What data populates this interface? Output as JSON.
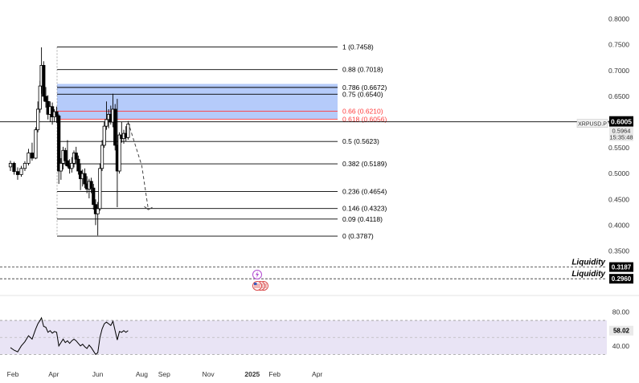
{
  "chart_data": {
    "type": "candlestick",
    "symbol": "XRPUSD.P",
    "price_axis": {
      "ticks": [
        "0.8000",
        "0.7500",
        "0.7000",
        "0.6500",
        "0.6000",
        "0.5500",
        "0.5000",
        "0.4500",
        "0.4000",
        "0.3500"
      ],
      "tick_values": [
        0.8,
        0.75,
        0.7,
        0.65,
        0.6,
        0.55,
        0.5,
        0.45,
        0.4,
        0.35
      ],
      "ylim": [
        0.343,
        0.815
      ]
    },
    "time_axis": {
      "ticks": [
        "Feb",
        "Apr",
        "Jun",
        "Aug",
        "Sep",
        "Nov",
        "2025",
        "Feb",
        "Apr"
      ],
      "tick_days": [
        0,
        60,
        121,
        182,
        213,
        274,
        335,
        366,
        425
      ],
      "xlim": [
        -10,
        457
      ]
    },
    "last_price": {
      "value": "0.6005",
      "secondary": "0.5964",
      "countdown": "15:35:48"
    },
    "fibonacci": {
      "levels": [
        {
          "label": "1 (0.7458)",
          "value": 0.7458,
          "highlight": false
        },
        {
          "label": "0.88 (0.7018)",
          "value": 0.7018,
          "highlight": false
        },
        {
          "label": "0.786 (0.6672)",
          "value": 0.6672,
          "highlight": false
        },
        {
          "label": "0.75 (0.6540)",
          "value": 0.654,
          "highlight": false
        },
        {
          "label": "0.66 (0.6210)",
          "value": 0.621,
          "highlight": true
        },
        {
          "label": "0.618 (0.6056)",
          "value": 0.6056,
          "highlight": true
        },
        {
          "label": "0.5 (0.5623)",
          "value": 0.5623,
          "highlight": false
        },
        {
          "label": "0.382 (0.5189)",
          "value": 0.5189,
          "highlight": false
        },
        {
          "label": "0.236 (0.4654)",
          "value": 0.4654,
          "highlight": false
        },
        {
          "label": "0.146 (0.4323)",
          "value": 0.4323,
          "highlight": false
        },
        {
          "label": "0.09 (0.4118)",
          "value": 0.4118,
          "highlight": false
        },
        {
          "label": "0 (0.3787)",
          "value": 0.3787,
          "highlight": false
        }
      ],
      "zone": {
        "from": 0.6056,
        "to": 0.674,
        "color": "#5b8cf5"
      }
    },
    "liquidity": [
      {
        "label": "Liquidity",
        "value": "0.3187",
        "level": 0.3187
      },
      {
        "label": "Liquidity",
        "value": "0.2960",
        "level": 0.296
      }
    ],
    "candles": [
      {
        "d": 0,
        "o": 0.513,
        "h": 0.525,
        "l": 0.505,
        "c": 0.52
      },
      {
        "d": 5,
        "o": 0.52,
        "h": 0.523,
        "l": 0.498,
        "c": 0.504
      },
      {
        "d": 10,
        "o": 0.504,
        "h": 0.512,
        "l": 0.488,
        "c": 0.498
      },
      {
        "d": 15,
        "o": 0.498,
        "h": 0.515,
        "l": 0.494,
        "c": 0.51
      },
      {
        "d": 20,
        "o": 0.51,
        "h": 0.524,
        "l": 0.505,
        "c": 0.52
      },
      {
        "d": 25,
        "o": 0.52,
        "h": 0.548,
        "l": 0.516,
        "c": 0.54
      },
      {
        "d": 30,
        "o": 0.54,
        "h": 0.56,
        "l": 0.525,
        "c": 0.53
      },
      {
        "d": 35,
        "o": 0.53,
        "h": 0.59,
        "l": 0.528,
        "c": 0.585
      },
      {
        "d": 38,
        "o": 0.585,
        "h": 0.64,
        "l": 0.58,
        "c": 0.625
      },
      {
        "d": 41,
        "o": 0.625,
        "h": 0.68,
        "l": 0.618,
        "c": 0.67
      },
      {
        "d": 43,
        "o": 0.67,
        "h": 0.745,
        "l": 0.655,
        "c": 0.71
      },
      {
        "d": 46,
        "o": 0.71,
        "h": 0.718,
        "l": 0.64,
        "c": 0.65
      },
      {
        "d": 49,
        "o": 0.65,
        "h": 0.668,
        "l": 0.628,
        "c": 0.64
      },
      {
        "d": 52,
        "o": 0.64,
        "h": 0.652,
        "l": 0.605,
        "c": 0.615
      },
      {
        "d": 55,
        "o": 0.615,
        "h": 0.64,
        "l": 0.6,
        "c": 0.63
      },
      {
        "d": 58,
        "o": 0.63,
        "h": 0.638,
        "l": 0.595,
        "c": 0.61
      },
      {
        "d": 61,
        "o": 0.61,
        "h": 0.625,
        "l": 0.6,
        "c": 0.62
      },
      {
        "d": 64,
        "o": 0.62,
        "h": 0.63,
        "l": 0.598,
        "c": 0.612
      },
      {
        "d": 67,
        "o": 0.612,
        "h": 0.615,
        "l": 0.48,
        "c": 0.505
      },
      {
        "d": 70,
        "o": 0.505,
        "h": 0.53,
        "l": 0.488,
        "c": 0.52
      },
      {
        "d": 73,
        "o": 0.52,
        "h": 0.552,
        "l": 0.508,
        "c": 0.545
      },
      {
        "d": 76,
        "o": 0.545,
        "h": 0.55,
        "l": 0.515,
        "c": 0.525
      },
      {
        "d": 79,
        "o": 0.525,
        "h": 0.565,
        "l": 0.512,
        "c": 0.515
      },
      {
        "d": 82,
        "o": 0.515,
        "h": 0.528,
        "l": 0.5,
        "c": 0.51
      },
      {
        "d": 85,
        "o": 0.51,
        "h": 0.532,
        "l": 0.502,
        "c": 0.52
      },
      {
        "d": 88,
        "o": 0.52,
        "h": 0.545,
        "l": 0.512,
        "c": 0.54
      },
      {
        "d": 91,
        "o": 0.54,
        "h": 0.552,
        "l": 0.52,
        "c": 0.528
      },
      {
        "d": 94,
        "o": 0.528,
        "h": 0.535,
        "l": 0.498,
        "c": 0.505
      },
      {
        "d": 97,
        "o": 0.505,
        "h": 0.52,
        "l": 0.468,
        "c": 0.49
      },
      {
        "d": 100,
        "o": 0.49,
        "h": 0.508,
        "l": 0.475,
        "c": 0.5
      },
      {
        "d": 103,
        "o": 0.5,
        "h": 0.51,
        "l": 0.472,
        "c": 0.48
      },
      {
        "d": 106,
        "o": 0.48,
        "h": 0.495,
        "l": 0.462,
        "c": 0.47
      },
      {
        "d": 109,
        "o": 0.47,
        "h": 0.49,
        "l": 0.452,
        "c": 0.485
      },
      {
        "d": 112,
        "o": 0.485,
        "h": 0.492,
        "l": 0.462,
        "c": 0.472
      },
      {
        "d": 115,
        "o": 0.472,
        "h": 0.48,
        "l": 0.43,
        "c": 0.44
      },
      {
        "d": 118,
        "o": 0.44,
        "h": 0.45,
        "l": 0.4,
        "c": 0.422
      },
      {
        "d": 121,
        "o": 0.422,
        "h": 0.445,
        "l": 0.38,
        "c": 0.432
      },
      {
        "d": 124,
        "o": 0.432,
        "h": 0.52,
        "l": 0.428,
        "c": 0.51
      },
      {
        "d": 127,
        "o": 0.51,
        "h": 0.565,
        "l": 0.505,
        "c": 0.555
      },
      {
        "d": 130,
        "o": 0.555,
        "h": 0.6,
        "l": 0.55,
        "c": 0.592
      },
      {
        "d": 133,
        "o": 0.592,
        "h": 0.64,
        "l": 0.585,
        "c": 0.605
      },
      {
        "d": 136,
        "o": 0.605,
        "h": 0.625,
        "l": 0.588,
        "c": 0.615
      },
      {
        "d": 139,
        "o": 0.615,
        "h": 0.632,
        "l": 0.595,
        "c": 0.6
      },
      {
        "d": 142,
        "o": 0.6,
        "h": 0.655,
        "l": 0.59,
        "c": 0.625
      },
      {
        "d": 145,
        "o": 0.625,
        "h": 0.635,
        "l": 0.545,
        "c": 0.555
      },
      {
        "d": 148,
        "o": 0.555,
        "h": 0.645,
        "l": 0.435,
        "c": 0.505
      },
      {
        "d": 151,
        "o": 0.505,
        "h": 0.58,
        "l": 0.5,
        "c": 0.575
      },
      {
        "d": 154,
        "o": 0.575,
        "h": 0.6,
        "l": 0.56,
        "c": 0.568
      },
      {
        "d": 157,
        "o": 0.568,
        "h": 0.585,
        "l": 0.558,
        "c": 0.578
      },
      {
        "d": 160,
        "o": 0.578,
        "h": 0.592,
        "l": 0.562,
        "c": 0.57
      },
      {
        "d": 163,
        "o": 0.57,
        "h": 0.602,
        "l": 0.566,
        "c": 0.596
      }
    ],
    "projection": [
      {
        "d": 163,
        "v": 0.6
      },
      {
        "d": 182,
        "v": 0.515
      },
      {
        "d": 191,
        "v": 0.43
      }
    ],
    "rsi": {
      "ticks": [
        "80.00",
        "40.00"
      ],
      "tick_values": [
        80,
        40
      ],
      "band": [
        30,
        70
      ],
      "ylim": [
        20,
        88
      ],
      "current": "58.02",
      "values": [
        {
          "d": 0,
          "v": 38
        },
        {
          "d": 5,
          "v": 35
        },
        {
          "d": 10,
          "v": 33
        },
        {
          "d": 15,
          "v": 40
        },
        {
          "d": 20,
          "v": 45
        },
        {
          "d": 25,
          "v": 52
        },
        {
          "d": 30,
          "v": 48
        },
        {
          "d": 35,
          "v": 60
        },
        {
          "d": 38,
          "v": 66
        },
        {
          "d": 41,
          "v": 70
        },
        {
          "d": 43,
          "v": 73
        },
        {
          "d": 46,
          "v": 63
        },
        {
          "d": 49,
          "v": 62
        },
        {
          "d": 52,
          "v": 56
        },
        {
          "d": 55,
          "v": 58
        },
        {
          "d": 58,
          "v": 55
        },
        {
          "d": 61,
          "v": 57
        },
        {
          "d": 64,
          "v": 56
        },
        {
          "d": 67,
          "v": 40
        },
        {
          "d": 70,
          "v": 44
        },
        {
          "d": 73,
          "v": 48
        },
        {
          "d": 76,
          "v": 44
        },
        {
          "d": 79,
          "v": 46
        },
        {
          "d": 82,
          "v": 43
        },
        {
          "d": 85,
          "v": 46
        },
        {
          "d": 88,
          "v": 48
        },
        {
          "d": 91,
          "v": 46
        },
        {
          "d": 94,
          "v": 43
        },
        {
          "d": 97,
          "v": 40
        },
        {
          "d": 100,
          "v": 42
        },
        {
          "d": 103,
          "v": 39
        },
        {
          "d": 106,
          "v": 37
        },
        {
          "d": 109,
          "v": 41
        },
        {
          "d": 112,
          "v": 38
        },
        {
          "d": 115,
          "v": 34
        },
        {
          "d": 118,
          "v": 30
        },
        {
          "d": 121,
          "v": 32
        },
        {
          "d": 124,
          "v": 50
        },
        {
          "d": 127,
          "v": 60
        },
        {
          "d": 130,
          "v": 66
        },
        {
          "d": 133,
          "v": 68
        },
        {
          "d": 136,
          "v": 66
        },
        {
          "d": 139,
          "v": 64
        },
        {
          "d": 142,
          "v": 69
        },
        {
          "d": 145,
          "v": 58
        },
        {
          "d": 148,
          "v": 47
        },
        {
          "d": 151,
          "v": 57
        },
        {
          "d": 154,
          "v": 56
        },
        {
          "d": 157,
          "v": 58
        },
        {
          "d": 160,
          "v": 56
        },
        {
          "d": 163,
          "v": 58
        }
      ]
    }
  },
  "colors": {
    "up": "#ffffff",
    "down": "#000000",
    "outline": "#000000",
    "fib_line": "#000000",
    "fib_highlight": "#ff3b3b",
    "rsi_band": "#e9e4f5",
    "price_badge": "#000000",
    "event_icon": "#b24bd1",
    "flag_icon": "#d94a4a"
  },
  "icons": [
    "lightning-event-icon",
    "us-flag-event-icons"
  ]
}
